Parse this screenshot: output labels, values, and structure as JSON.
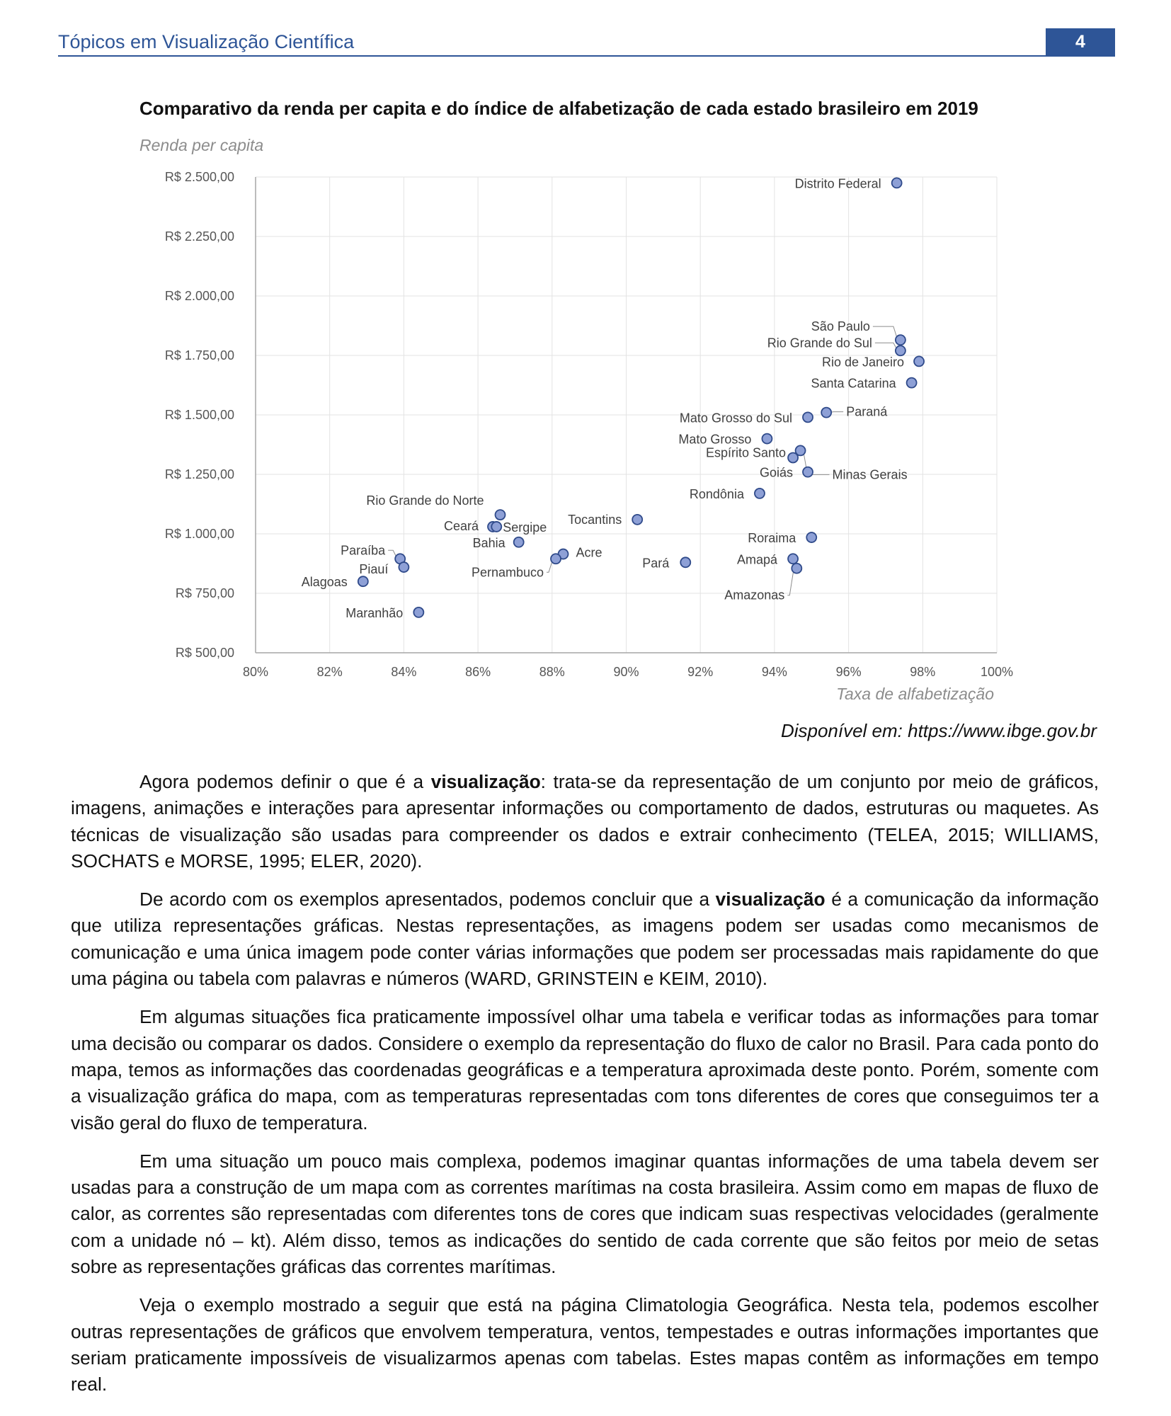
{
  "header": {
    "title": "Tópicos em Visualização Científica",
    "page_number": "4"
  },
  "chart_data": {
    "type": "scatter",
    "title": "Comparativo da renda per capita e do índice de alfabetização de cada estado brasileiro em 2019",
    "ylabel": "Renda per capita",
    "xlabel": "Taxa de alfabetização",
    "xlim": [
      80,
      100
    ],
    "ylim": [
      500,
      2500
    ],
    "x_ticks": [
      80,
      82,
      84,
      86,
      88,
      90,
      92,
      94,
      96,
      98,
      100
    ],
    "x_tick_labels": [
      "80%",
      "82%",
      "84%",
      "86%",
      "88%",
      "90%",
      "92%",
      "94%",
      "96%",
      "98%",
      "100%"
    ],
    "y_ticks": [
      500,
      750,
      1000,
      1250,
      1500,
      1750,
      2000,
      2250,
      2500
    ],
    "y_tick_labels": [
      "R$ 500,00",
      "R$ 750,00",
      "R$ 1.000,00",
      "R$ 1.250,00",
      "R$ 1.500,00",
      "R$ 1.750,00",
      "R$ 2.000,00",
      "R$ 2.250,00",
      "R$ 2.500,00"
    ],
    "grid": true,
    "marker_color": "#8ea0d6",
    "marker_edge": "#2f4a8a",
    "points": [
      {
        "label": "Distrito Federal",
        "x": 97.3,
        "y": 2475
      },
      {
        "label": "São Paulo",
        "x": 97.4,
        "y": 1815
      },
      {
        "label": "Rio Grande do Sul",
        "x": 97.4,
        "y": 1770
      },
      {
        "label": "Rio de Janeiro",
        "x": 97.9,
        "y": 1725
      },
      {
        "label": "Santa Catarina",
        "x": 97.7,
        "y": 1635
      },
      {
        "label": "Paraná",
        "x": 95.4,
        "y": 1510
      },
      {
        "label": "Mato Grosso do Sul",
        "x": 94.9,
        "y": 1490
      },
      {
        "label": "Mato Grosso",
        "x": 93.8,
        "y": 1400
      },
      {
        "label": "Minas Gerais",
        "x": 94.7,
        "y": 1350
      },
      {
        "label": "Espírito Santo",
        "x": 94.5,
        "y": 1320
      },
      {
        "label": "Goiás",
        "x": 94.9,
        "y": 1260
      },
      {
        "label": "Rondônia",
        "x": 93.6,
        "y": 1170
      },
      {
        "label": "Tocantins",
        "x": 90.3,
        "y": 1060
      },
      {
        "label": "Roraima",
        "x": 95.0,
        "y": 985
      },
      {
        "label": "Amapá",
        "x": 94.5,
        "y": 895
      },
      {
        "label": "Amazonas",
        "x": 94.6,
        "y": 855
      },
      {
        "label": "Pará",
        "x": 91.6,
        "y": 880
      },
      {
        "label": "Acre",
        "x": 88.3,
        "y": 915
      },
      {
        "label": "Pernambuco",
        "x": 88.1,
        "y": 895
      },
      {
        "label": "Rio Grande do Norte",
        "x": 86.6,
        "y": 1080
      },
      {
        "label": "Ceará",
        "x": 86.4,
        "y": 1030
      },
      {
        "label": "Sergipe",
        "x": 86.5,
        "y": 1030
      },
      {
        "label": "Bahia",
        "x": 87.1,
        "y": 965
      },
      {
        "label": "Paraíba",
        "x": 83.9,
        "y": 895
      },
      {
        "label": "Piauí",
        "x": 84.0,
        "y": 860
      },
      {
        "label": "Alagoas",
        "x": 82.9,
        "y": 800
      },
      {
        "label": "Maranhão",
        "x": 84.4,
        "y": 670
      }
    ]
  },
  "source": "Disponível em: https://www.ibge.gov.br",
  "paragraphs": [
    {
      "pre": "Agora podemos definir o que é a ",
      "bold": "visualização",
      "post": ": trata-se da representação de um conjunto por meio de gráficos, imagens, animações e interações para apresentar informações ou comportamento de dados, estruturas ou maquetes. As técnicas de visualização são usadas para compreender os dados e extrair conhecimento (TELEA, 2015; WILLIAMS, SOCHATS e MORSE, 1995; ELER, 2020)."
    },
    {
      "pre": "De acordo com os exemplos apresentados, podemos concluir que a ",
      "bold": "visualização",
      "post": " é a comunicação da informação que utiliza representações gráficas. Nestas representações, as imagens podem ser usadas como mecanismos de comunicação e uma única imagem pode conter várias informações que podem ser processadas mais rapidamente do que uma página ou tabela com palavras e números (WARD, GRINSTEIN e KEIM, 2010)."
    },
    {
      "pre": "Em algumas situações fica praticamente impossível olhar uma tabela e verificar todas as informações para tomar uma decisão ou comparar os dados. Considere o exemplo da representação do fluxo de calor no Brasil. Para cada ponto do mapa, temos as informações das coordenadas geográficas e a temperatura aproximada deste ponto. Porém, somente com a visualização gráfica do mapa, com as temperaturas representadas com tons diferentes de cores que conseguimos ter a visão geral do fluxo de temperatura.",
      "bold": "",
      "post": ""
    },
    {
      "pre": "Em uma situação um pouco mais complexa, podemos imaginar quantas informações de uma tabela devem ser usadas para a construção de um mapa com as correntes marítimas na costa brasileira. Assim como em mapas de fluxo de calor, as correntes são representadas com diferentes tons de cores que indicam suas respectivas velocidades (geralmente com a unidade nó – kt). Além disso, temos as indicações do sentido de cada corrente que são feitos por meio de setas sobre as representações gráficas das correntes marítimas.",
      "bold": "",
      "post": ""
    },
    {
      "pre": "Veja o exemplo mostrado a seguir que está na página Climatologia Geográfica. Nesta tela, podemos escolher outras representações de gráficos que envolvem temperatura, ventos, tempestades e outras informações importantes que seriam praticamente impossíveis de visualizarmos apenas com tabelas. Estes mapas contêm as informações em tempo real.",
      "bold": "",
      "post": ""
    }
  ]
}
